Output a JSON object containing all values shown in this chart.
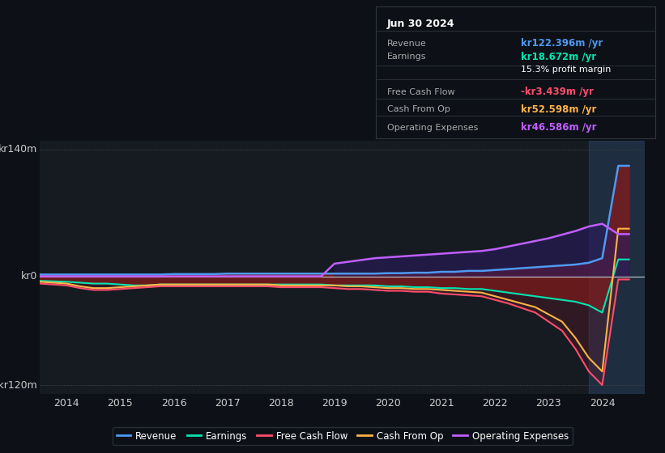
{
  "bg_color": "#0d1117",
  "plot_bg_color": "#161b22",
  "grid_color": "#30363d",
  "ylabel_top": "kr140m",
  "ylabel_zero": "kr0",
  "ylabel_bottom": "-kr120m",
  "ylim": [
    -130,
    150
  ],
  "xlim": [
    2013.5,
    2024.8
  ],
  "xticks": [
    2014,
    2015,
    2016,
    2017,
    2018,
    2019,
    2020,
    2021,
    2022,
    2023,
    2024
  ],
  "line_colors": {
    "revenue": "#4e9af1",
    "earnings": "#00e5b0",
    "free_cash_flow": "#ff4d6d",
    "cash_from_op": "#ffb347",
    "operating_expenses": "#bf5fff"
  },
  "legend": [
    {
      "label": "Revenue",
      "color": "#4e9af1"
    },
    {
      "label": "Earnings",
      "color": "#00e5b0"
    },
    {
      "label": "Free Cash Flow",
      "color": "#ff4d6d"
    },
    {
      "label": "Cash From Op",
      "color": "#ffb347"
    },
    {
      "label": "Operating Expenses",
      "color": "#bf5fff"
    }
  ],
  "info_box": {
    "date": "Jun 30 2024",
    "rows": [
      {
        "label": "Revenue",
        "value": "kr122.396m /yr",
        "value_color": "#4e9af1",
        "sub": null
      },
      {
        "label": "Earnings",
        "value": "kr18.672m /yr",
        "value_color": "#00e5b0",
        "sub": "15.3% profit margin"
      },
      {
        "label": "Free Cash Flow",
        "value": "-kr3.439m /yr",
        "value_color": "#ff4d6d",
        "sub": null
      },
      {
        "label": "Cash From Op",
        "value": "kr52.598m /yr",
        "value_color": "#ffb347",
        "sub": null
      },
      {
        "label": "Operating Expenses",
        "value": "kr46.586m /yr",
        "value_color": "#bf5fff",
        "sub": null
      }
    ]
  }
}
